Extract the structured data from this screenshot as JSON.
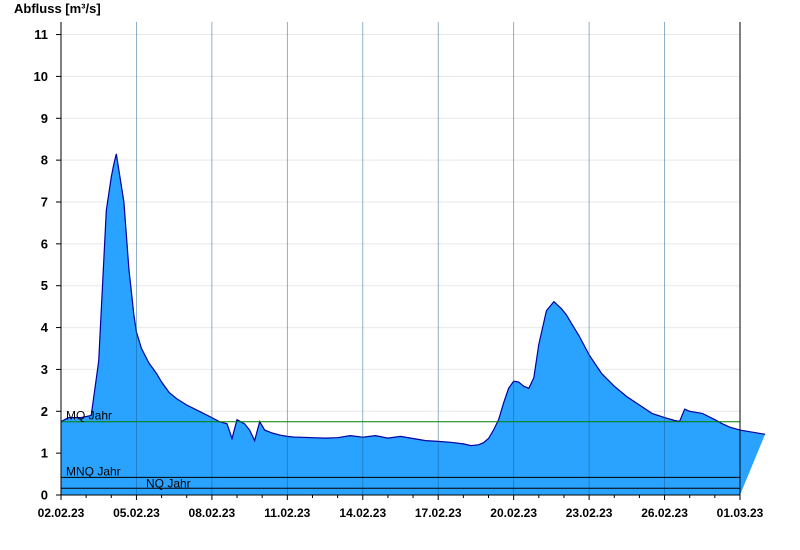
{
  "chart_data": {
    "type": "area",
    "ylabel": "Abfluss [m³/s]",
    "xlabel": "",
    "title": "",
    "ylim": [
      0,
      11.3
    ],
    "yticks": [
      0,
      1,
      2,
      3,
      4,
      5,
      6,
      7,
      8,
      9,
      10,
      11
    ],
    "xlim": [
      "2023-02-02",
      "2023-03-01"
    ],
    "xtick_labels": [
      "02.02.23",
      "05.02.23",
      "08.02.23",
      "11.02.23",
      "14.02.23",
      "17.02.23",
      "20.02.23",
      "23.02.23",
      "26.02.23",
      "01.03.23"
    ],
    "grid": true,
    "colors": {
      "fill": "#29a3ff",
      "line": "#0000a0",
      "mq": "#008000",
      "ref": "#000000",
      "grid": "#e8e8e8",
      "vgrid": "#1a5a8a"
    },
    "series": [
      {
        "x_days": [
          0,
          0.3,
          0.8,
          1.2,
          1.5,
          1.8,
          2.0,
          2.1,
          2.2,
          2.5,
          2.7,
          2.9,
          3.0,
          3.2,
          3.5,
          3.8,
          4.0,
          4.3,
          4.6,
          5.0,
          5.5,
          6.0,
          6.3,
          6.6,
          6.8,
          7.0,
          7.3,
          7.5,
          7.7,
          7.9,
          8.1,
          8.4,
          8.7,
          9.0,
          9.3,
          9.5,
          10.0,
          10.5,
          11.0,
          11.5,
          12.0,
          12.5,
          13.0,
          13.5,
          14.0,
          14.5,
          15.0,
          15.5,
          16.0,
          16.3,
          16.6,
          16.8,
          17.0,
          17.2,
          17.4,
          17.6,
          17.8,
          18.0,
          18.2,
          18.4,
          18.6,
          18.8,
          19.0,
          19.3,
          19.6,
          19.9,
          20.1,
          20.3,
          20.6,
          21.0,
          21.5,
          22.0,
          22.5,
          23.0,
          23.5,
          24.0,
          24.4,
          24.6,
          24.8,
          25.0,
          25.5,
          26.0,
          26.3,
          26.6,
          27.0,
          27.5,
          28.0
        ],
        "y": [
          1.75,
          1.85,
          1.85,
          1.9,
          3.2,
          6.8,
          7.6,
          7.9,
          8.15,
          7.0,
          5.4,
          4.3,
          3.9,
          3.5,
          3.15,
          2.9,
          2.7,
          2.45,
          2.3,
          2.15,
          2.0,
          1.85,
          1.75,
          1.7,
          1.35,
          1.8,
          1.7,
          1.55,
          1.3,
          1.75,
          1.55,
          1.48,
          1.43,
          1.4,
          1.38,
          1.38,
          1.37,
          1.36,
          1.37,
          1.42,
          1.38,
          1.42,
          1.36,
          1.4,
          1.35,
          1.3,
          1.28,
          1.26,
          1.22,
          1.18,
          1.2,
          1.25,
          1.35,
          1.55,
          1.8,
          2.2,
          2.55,
          2.72,
          2.7,
          2.6,
          2.55,
          2.8,
          3.6,
          4.4,
          4.62,
          4.45,
          4.3,
          4.1,
          3.8,
          3.35,
          2.9,
          2.6,
          2.35,
          2.15,
          1.95,
          1.85,
          1.78,
          1.76,
          2.05,
          2.0,
          1.95,
          1.8,
          1.7,
          1.62,
          1.55,
          1.5,
          1.45
        ]
      }
    ],
    "reference_lines": [
      {
        "name": "MQ Jahr",
        "value": 1.75
      },
      {
        "name": "MNQ Jahr",
        "value": 0.42
      },
      {
        "name": "NQ Jahr",
        "value": 0.16
      }
    ]
  }
}
